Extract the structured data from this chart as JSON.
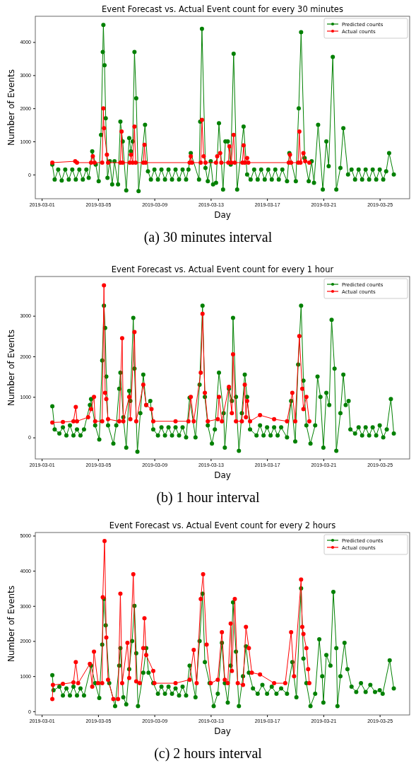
{
  "chart_data": [
    {
      "type": "line",
      "title": "Event Forecast vs. Actual Event count for every 30 minutes",
      "xlabel": "Day",
      "ylabel": "Number of Events",
      "annotations": [
        "(a) 30 minutes interval"
      ],
      "xlim": [
        "2019-02-28T13:00",
        "2019-03-27T03:00"
      ],
      "xticks": [
        "2019-03-01",
        "2019-03-05",
        "2019-03-09",
        "2019-03-13",
        "2019-03-17",
        "2019-03-21",
        "2019-03-25"
      ],
      "ylim": [
        -730,
        4780
      ],
      "yticks": [
        0,
        1000,
        2000,
        3000,
        4000
      ],
      "legend": "top right",
      "marker": "circle",
      "line_style": "solid",
      "series": [
        {
          "name": "Predicted counts",
          "color": "#008000",
          "x": [
            "2019-03-01T18:00",
            "2019-03-01T22:00",
            "2019-03-02T04:00",
            "2019-03-02T10:00",
            "2019-03-02T16:00",
            "2019-03-02T22:00",
            "2019-03-03T04:00",
            "2019-03-03T10:00",
            "2019-03-03T16:00",
            "2019-03-03T22:00",
            "2019-03-04T04:00",
            "2019-03-04T08:00",
            "2019-03-04T14:00",
            "2019-03-04T20:00",
            "2019-03-05T01:00",
            "2019-03-05T05:00",
            "2019-03-05T08:00",
            "2019-03-05T09:00",
            "2019-03-05T11:00",
            "2019-03-05T13:00",
            "2019-03-05T16:00",
            "2019-03-05T20:00",
            "2019-03-06T00:00",
            "2019-03-06T04:00",
            "2019-03-06T10:00",
            "2019-03-06T14:00",
            "2019-03-06T18:00",
            "2019-03-07T00:00",
            "2019-03-07T05:00",
            "2019-03-07T08:00",
            "2019-03-07T11:00",
            "2019-03-07T14:00",
            "2019-03-07T17:00",
            "2019-03-07T21:00",
            "2019-03-08T08:00",
            "2019-03-08T13:00",
            "2019-03-08T18:00",
            "2019-03-09T00:00",
            "2019-03-09T06:00",
            "2019-03-09T12:00",
            "2019-03-09T18:00",
            "2019-03-10T00:00",
            "2019-03-10T06:00",
            "2019-03-10T12:00",
            "2019-03-10T18:00",
            "2019-03-11T00:00",
            "2019-03-11T06:00",
            "2019-03-11T10:00",
            "2019-03-11T14:00",
            "2019-03-12T04:00",
            "2019-03-12T06:00",
            "2019-03-12T09:00",
            "2019-03-12T15:00",
            "2019-03-12T19:00",
            "2019-03-13T00:00",
            "2019-03-13T04:00",
            "2019-03-13T09:00",
            "2019-03-13T14:00",
            "2019-03-13T21:00",
            "2019-03-14T01:00",
            "2019-03-14T05:00",
            "2019-03-14T10:00",
            "2019-03-14T15:00",
            "2019-03-14T21:00",
            "2019-03-15T08:00",
            "2019-03-15T14:00",
            "2019-03-15T20:00",
            "2019-03-16T02:00",
            "2019-03-16T08:00",
            "2019-03-16T14:00",
            "2019-03-16T20:00",
            "2019-03-17T02:00",
            "2019-03-17T08:00",
            "2019-03-17T14:00",
            "2019-03-17T20:00",
            "2019-03-18T02:00",
            "2019-03-18T10:00",
            "2019-03-18T14:00",
            "2019-03-19T01:00",
            "2019-03-19T06:00",
            "2019-03-19T10:00",
            "2019-03-19T16:00",
            "2019-03-19T23:00",
            "2019-03-20T04:00",
            "2019-03-20T08:00",
            "2019-03-20T15:00",
            "2019-03-20T23:00",
            "2019-03-21T05:00",
            "2019-03-21T09:00",
            "2019-03-21T16:00",
            "2019-03-21T22:00",
            "2019-03-22T05:00",
            "2019-03-22T10:00",
            "2019-03-22T18:00",
            "2019-03-23T00:00",
            "2019-03-23T06:00",
            "2019-03-23T12:00",
            "2019-03-23T18:00",
            "2019-03-24T00:00",
            "2019-03-24T06:00",
            "2019-03-24T12:00",
            "2019-03-24T18:00",
            "2019-03-25T00:00",
            "2019-03-25T06:00",
            "2019-03-25T11:00",
            "2019-03-25T16:00",
            "2019-03-26T00:00"
          ],
          "values": [
            300,
            -150,
            150,
            -180,
            150,
            -150,
            150,
            -150,
            150,
            -150,
            150,
            -100,
            700,
            300,
            -200,
            1200,
            3700,
            4520,
            3300,
            1700,
            -100,
            400,
            -300,
            400,
            -300,
            1600,
            1000,
            -480,
            1100,
            700,
            1000,
            3700,
            2300,
            -500,
            1500,
            100,
            -150,
            150,
            -150,
            150,
            -150,
            150,
            -150,
            150,
            -150,
            150,
            -150,
            150,
            650,
            -150,
            1600,
            4400,
            200,
            -200,
            400,
            -300,
            -250,
            1550,
            -450,
            1000,
            1000,
            300,
            3650,
            -450,
            1450,
            0,
            -150,
            150,
            -150,
            150,
            -150,
            150,
            -150,
            150,
            -150,
            150,
            -200,
            650,
            -200,
            2000,
            4300,
            500,
            -200,
            400,
            -250,
            1500,
            -450,
            1000,
            250,
            3550,
            -450,
            200,
            1400,
            0,
            150,
            -150,
            150,
            -150,
            150,
            -150,
            150,
            -150,
            150,
            -150,
            100,
            650,
            0
          ]
        },
        {
          "name": "Actual counts",
          "color": "#ff0000",
          "x": [
            "2019-03-01T18:00",
            "2019-03-03T09:00",
            "2019-03-03T12:00",
            "2019-03-04T12:00",
            "2019-03-04T15:00",
            "2019-03-04T18:00",
            "2019-03-05T07:00",
            "2019-03-05T09:00",
            "2019-03-05T10:00",
            "2019-03-05T15:00",
            "2019-03-05T17:00",
            "2019-03-06T14:00",
            "2019-03-06T16:00",
            "2019-03-06T18:00",
            "2019-03-07T06:00",
            "2019-03-07T08:00",
            "2019-03-07T11:00",
            "2019-03-07T14:00",
            "2019-03-07T16:00",
            "2019-03-08T05:00",
            "2019-03-08T07:00",
            "2019-03-08T09:00",
            "2019-03-11T12:00",
            "2019-03-11T14:00",
            "2019-03-11T16:00",
            "2019-03-12T07:00",
            "2019-03-12T09:00",
            "2019-03-12T12:00",
            "2019-03-12T15:00",
            "2019-03-13T09:00",
            "2019-03-13T11:00",
            "2019-03-13T16:00",
            "2019-03-13T18:00",
            "2019-03-14T06:00",
            "2019-03-14T08:00",
            "2019-03-14T11:00",
            "2019-03-14T15:00",
            "2019-03-14T17:00",
            "2019-03-15T06:00",
            "2019-03-15T08:00",
            "2019-03-15T10:00",
            "2019-03-15T14:00",
            "2019-03-15T16:00",
            "2019-03-18T13:00",
            "2019-03-18T15:00",
            "2019-03-18T17:00",
            "2019-03-19T05:00",
            "2019-03-19T07:00",
            "2019-03-19T09:00",
            "2019-03-19T14:00",
            "2019-03-19T17:00",
            "2019-03-20T00:00"
          ],
          "values": [
            360,
            400,
            360,
            360,
            550,
            360,
            360,
            2000,
            1400,
            600,
            360,
            360,
            1300,
            360,
            360,
            600,
            360,
            1450,
            360,
            360,
            900,
            360,
            360,
            550,
            360,
            360,
            1650,
            550,
            360,
            360,
            550,
            650,
            360,
            360,
            850,
            360,
            1200,
            360,
            360,
            880,
            360,
            500,
            360,
            360,
            600,
            360,
            360,
            1300,
            360,
            650,
            400,
            360
          ]
        }
      ]
    },
    {
      "type": "line",
      "title": "Event Forecast vs. Actual Event count for every 1 hour",
      "xlabel": "Day",
      "ylabel": "Number of Events",
      "annotations": [
        "(b) 1 hour interval"
      ],
      "xlim": [
        "2019-02-28T13:00",
        "2019-03-27T03:00"
      ],
      "xticks": [
        "2019-03-01",
        "2019-03-05",
        "2019-03-09",
        "2019-03-13",
        "2019-03-17",
        "2019-03-21",
        "2019-03-25"
      ],
      "ylim": [
        -530,
        3970
      ],
      "yticks": [
        0,
        1000,
        2000,
        3000
      ],
      "legend": "top right",
      "marker": "circle",
      "line_style": "solid",
      "series": [
        {
          "name": "Predicted counts",
          "color": "#008000",
          "x": [
            "2019-03-01T18:00",
            "2019-03-01T22:00",
            "2019-03-02T06:00",
            "2019-03-02T12:00",
            "2019-03-02T18:00",
            "2019-03-03T00:00",
            "2019-03-03T06:00",
            "2019-03-03T12:00",
            "2019-03-03T18:00",
            "2019-03-04T00:00",
            "2019-03-04T10:00",
            "2019-03-04T12:00",
            "2019-03-04T19:00",
            "2019-03-05T02:00",
            "2019-03-05T07:00",
            "2019-03-05T10:00",
            "2019-03-05T12:00",
            "2019-03-05T14:00",
            "2019-03-05T17:00",
            "2019-03-06T02:00",
            "2019-03-06T07:00",
            "2019-03-06T12:00",
            "2019-03-06T14:00",
            "2019-03-06T19:00",
            "2019-03-07T00:00",
            "2019-03-07T05:00",
            "2019-03-07T07:00",
            "2019-03-07T12:00",
            "2019-03-07T14:00",
            "2019-03-07T19:00",
            "2019-03-08T00:00",
            "2019-03-08T05:00",
            "2019-03-08T10:00",
            "2019-03-08T17:00",
            "2019-03-08T22:00",
            "2019-03-09T06:00",
            "2019-03-09T12:00",
            "2019-03-09T18:00",
            "2019-03-10T00:00",
            "2019-03-10T06:00",
            "2019-03-10T12:00",
            "2019-03-10T18:00",
            "2019-03-11T00:00",
            "2019-03-11T06:00",
            "2019-03-11T12:00",
            "2019-03-11T22:00",
            "2019-03-12T05:00",
            "2019-03-12T10:00",
            "2019-03-12T14:00",
            "2019-03-12T19:00",
            "2019-03-13T02:00",
            "2019-03-13T07:00",
            "2019-03-13T14:00",
            "2019-03-13T22:00",
            "2019-03-14T00:00",
            "2019-03-14T07:00",
            "2019-03-14T12:00",
            "2019-03-14T14:00",
            "2019-03-14T19:00",
            "2019-03-15T00:00",
            "2019-03-15T05:00",
            "2019-03-15T10:00",
            "2019-03-15T14:00",
            "2019-03-15T19:00",
            "2019-03-16T06:00",
            "2019-03-16T12:00",
            "2019-03-16T18:00",
            "2019-03-17T00:00",
            "2019-03-17T06:00",
            "2019-03-17T12:00",
            "2019-03-17T18:00",
            "2019-03-18T00:00",
            "2019-03-18T10:00",
            "2019-03-18T17:00",
            "2019-03-19T00:00",
            "2019-03-19T05:00",
            "2019-03-19T10:00",
            "2019-03-19T14:00",
            "2019-03-19T19:00",
            "2019-03-20T02:00",
            "2019-03-20T10:00",
            "2019-03-20T14:00",
            "2019-03-20T19:00",
            "2019-03-21T00:00",
            "2019-03-21T05:00",
            "2019-03-21T10:00",
            "2019-03-21T14:00",
            "2019-03-21T19:00",
            "2019-03-21T22:00",
            "2019-03-22T05:00",
            "2019-03-22T10:00",
            "2019-03-22T14:00",
            "2019-03-22T19:00",
            "2019-03-22T22:00",
            "2019-03-23T06:00",
            "2019-03-23T12:00",
            "2019-03-23T18:00",
            "2019-03-24T00:00",
            "2019-03-24T06:00",
            "2019-03-24T12:00",
            "2019-03-24T18:00",
            "2019-03-25T00:00",
            "2019-03-25T06:00",
            "2019-03-25T12:00",
            "2019-03-25T19:00",
            "2019-03-26T00:00"
          ],
          "values": [
            770,
            200,
            100,
            250,
            50,
            300,
            50,
            200,
            50,
            200,
            800,
            950,
            300,
            -50,
            1900,
            3250,
            2700,
            1500,
            300,
            -150,
            300,
            1200,
            1600,
            500,
            -250,
            1150,
            900,
            2950,
            1700,
            -350,
            600,
            1550,
            800,
            900,
            200,
            50,
            250,
            50,
            250,
            50,
            250,
            50,
            250,
            0,
            980,
            0,
            1300,
            3250,
            1000,
            300,
            -150,
            200,
            1600,
            600,
            -250,
            1200,
            900,
            2950,
            1000,
            -330,
            600,
            1550,
            1000,
            200,
            50,
            300,
            50,
            250,
            50,
            250,
            50,
            250,
            0,
            900,
            -100,
            1800,
            3250,
            1400,
            300,
            -150,
            300,
            1500,
            1000,
            -250,
            1100,
            800,
            2900,
            1700,
            -330,
            600,
            1550,
            800,
            900,
            200,
            100,
            250,
            50,
            250,
            50,
            250,
            50,
            300,
            0,
            200,
            950,
            100
          ]
        },
        {
          "name": "Actual counts",
          "color": "#ff0000",
          "x": [
            "2019-03-01T18:00",
            "2019-03-02T12:00",
            "2019-03-03T06:00",
            "2019-03-03T10:00",
            "2019-03-03T12:00",
            "2019-03-04T07:00",
            "2019-03-04T12:00",
            "2019-03-04T17:00",
            "2019-03-04T19:00",
            "2019-03-05T07:00",
            "2019-03-05T10:00",
            "2019-03-05T12:00",
            "2019-03-05T14:00",
            "2019-03-05T17:00",
            "2019-03-06T12:00",
            "2019-03-06T17:00",
            "2019-03-06T19:00",
            "2019-03-07T05:00",
            "2019-03-07T07:00",
            "2019-03-07T14:00",
            "2019-03-07T17:00",
            "2019-03-08T05:00",
            "2019-03-08T10:00",
            "2019-03-08T19:00",
            "2019-03-08T22:00",
            "2019-03-10T12:00",
            "2019-03-11T10:00",
            "2019-03-11T14:00",
            "2019-03-11T19:00",
            "2019-03-12T07:00",
            "2019-03-12T10:00",
            "2019-03-12T14:00",
            "2019-03-12T19:00",
            "2019-03-13T12:00",
            "2019-03-13T14:00",
            "2019-03-13T19:00",
            "2019-03-14T07:00",
            "2019-03-14T12:00",
            "2019-03-14T14:00",
            "2019-03-14T19:00",
            "2019-03-15T05:00",
            "2019-03-15T10:00",
            "2019-03-15T12:00",
            "2019-03-15T14:00",
            "2019-03-15T19:00",
            "2019-03-16T12:00",
            "2019-03-17T12:00",
            "2019-03-18T10:00",
            "2019-03-18T19:00",
            "2019-03-19T00:00",
            "2019-03-19T07:00",
            "2019-03-19T12:00",
            "2019-03-19T14:00",
            "2019-03-19T19:00",
            "2019-03-20T00:00"
          ],
          "values": [
            370,
            380,
            400,
            750,
            400,
            500,
            700,
            1000,
            400,
            400,
            3750,
            1100,
            950,
            450,
            400,
            2450,
            400,
            1000,
            450,
            2600,
            400,
            1300,
            800,
            700,
            400,
            400,
            400,
            1000,
            400,
            1600,
            3050,
            1100,
            400,
            450,
            1000,
            400,
            1250,
            600,
            2050,
            400,
            400,
            1300,
            500,
            900,
            400,
            550,
            450,
            400,
            1100,
            400,
            2500,
            1200,
            700,
            1000,
            400
          ]
        }
      ]
    },
    {
      "type": "line",
      "title": "Event Forecast vs. Actual Event count for every 2 hours",
      "xlabel": "Day",
      "ylabel": "Number of Events",
      "annotations": [
        "(c) 2 hours interval"
      ],
      "xlim": [
        "2019-02-28T13:00",
        "2019-03-27T03:00"
      ],
      "xticks": [
        "2019-03-01",
        "2019-03-05",
        "2019-03-09",
        "2019-03-13",
        "2019-03-17",
        "2019-03-21",
        "2019-03-25"
      ],
      "ylim": [
        -104,
        5090
      ],
      "yticks": [
        0,
        1000,
        2000,
        3000,
        4000,
        5000
      ],
      "legend": "top right",
      "marker": "circle",
      "line_style": "solid",
      "series": [
        {
          "name": "Predicted counts",
          "color": "#008000",
          "x": [
            "2019-03-01T18:00",
            "2019-03-01T20:00",
            "2019-03-02T06:00",
            "2019-03-02T12:00",
            "2019-03-02T18:00",
            "2019-03-03T00:00",
            "2019-03-03T06:00",
            "2019-03-03T12:00",
            "2019-03-03T18:00",
            "2019-03-04T00:00",
            "2019-03-04T12:00",
            "2019-03-04T19:00",
            "2019-03-05T02:00",
            "2019-03-05T07:00",
            "2019-03-05T10:00",
            "2019-03-05T13:00",
            "2019-03-05T19:00",
            "2019-03-06T05:00",
            "2019-03-06T12:00",
            "2019-03-06T14:00",
            "2019-03-06T19:00",
            "2019-03-07T00:00",
            "2019-03-07T05:00",
            "2019-03-07T10:00",
            "2019-03-07T14:00",
            "2019-03-07T17:00",
            "2019-03-07T20:00",
            "2019-03-08T05:00",
            "2019-03-08T10:00",
            "2019-03-08T14:00",
            "2019-03-08T22:00",
            "2019-03-09T06:00",
            "2019-03-09T12:00",
            "2019-03-09T18:00",
            "2019-03-10T00:00",
            "2019-03-10T06:00",
            "2019-03-10T12:00",
            "2019-03-10T18:00",
            "2019-03-11T00:00",
            "2019-03-11T06:00",
            "2019-03-11T12:00",
            "2019-03-11T22:00",
            "2019-03-12T05:00",
            "2019-03-12T10:00",
            "2019-03-12T14:00",
            "2019-03-12T22:00",
            "2019-03-13T05:00",
            "2019-03-13T12:00",
            "2019-03-13T19:00",
            "2019-03-14T00:00",
            "2019-03-14T05:00",
            "2019-03-14T10:00",
            "2019-03-14T14:00",
            "2019-03-14T19:00",
            "2019-03-15T00:00",
            "2019-03-15T07:00",
            "2019-03-15T12:00",
            "2019-03-15T17:00",
            "2019-03-16T00:00",
            "2019-03-16T08:00",
            "2019-03-16T16:00",
            "2019-03-17T00:00",
            "2019-03-17T08:00",
            "2019-03-17T16:00",
            "2019-03-18T00:00",
            "2019-03-18T10:00",
            "2019-03-18T19:00",
            "2019-03-19T02:00",
            "2019-03-19T10:00",
            "2019-03-19T14:00",
            "2019-03-19T19:00",
            "2019-03-20T02:00",
            "2019-03-20T10:00",
            "2019-03-20T17:00",
            "2019-03-20T22:00",
            "2019-03-21T00:00",
            "2019-03-21T05:00",
            "2019-03-21T12:00",
            "2019-03-21T17:00",
            "2019-03-21T22:00",
            "2019-03-22T00:00",
            "2019-03-22T05:00",
            "2019-03-22T12:00",
            "2019-03-22T17:00",
            "2019-03-23T00:00",
            "2019-03-23T08:00",
            "2019-03-23T16:00",
            "2019-03-24T00:00",
            "2019-03-24T08:00",
            "2019-03-24T16:00",
            "2019-03-25T00:00",
            "2019-03-25T05:00",
            "2019-03-25T17:00",
            "2019-03-26T00:00"
          ],
          "values": [
            1030,
            600,
            700,
            450,
            650,
            450,
            700,
            450,
            650,
            450,
            1300,
            800,
            380,
            1900,
            3200,
            2450,
            800,
            150,
            1300,
            1800,
            400,
            200,
            1200,
            2000,
            3000,
            1650,
            150,
            1100,
            1800,
            1100,
            800,
            500,
            700,
            500,
            700,
            500,
            650,
            450,
            700,
            450,
            1300,
            400,
            2000,
            3350,
            1400,
            800,
            150,
            500,
            1950,
            800,
            250,
            1300,
            3100,
            1700,
            150,
            1000,
            1850,
            1100,
            650,
            500,
            750,
            500,
            700,
            500,
            650,
            500,
            1400,
            400,
            3500,
            1500,
            800,
            150,
            500,
            2050,
            1000,
            250,
            1600,
            1300,
            3400,
            1800,
            150,
            1000,
            1950,
            1200,
            700,
            550,
            800,
            550,
            750,
            550,
            600,
            500,
            1450,
            650
          ]
        },
        {
          "name": "Actual counts",
          "color": "#ff0000",
          "x": [
            "2019-03-01T18:00",
            "2019-03-01T19:00",
            "2019-03-02T12:00",
            "2019-03-03T06:00",
            "2019-03-03T10:00",
            "2019-03-03T14:00",
            "2019-03-04T10:00",
            "2019-03-04T14:00",
            "2019-03-04T17:00",
            "2019-03-05T00:00",
            "2019-03-05T07:00",
            "2019-03-05T08:00",
            "2019-03-05T11:00",
            "2019-03-05T14:00",
            "2019-03-05T17:00",
            "2019-03-06T02:00",
            "2019-03-06T10:00",
            "2019-03-06T14:00",
            "2019-03-06T17:00",
            "2019-03-07T02:00",
            "2019-03-07T05:00",
            "2019-03-07T12:00",
            "2019-03-07T17:00",
            "2019-03-07T23:00",
            "2019-03-08T05:00",
            "2019-03-08T07:00",
            "2019-03-08T10:00",
            "2019-03-08T22:00",
            "2019-03-09T00:00",
            "2019-03-10T12:00",
            "2019-03-11T12:00",
            "2019-03-11T19:00",
            "2019-03-12T00:00",
            "2019-03-12T07:00",
            "2019-03-12T11:00",
            "2019-03-12T17:00",
            "2019-03-13T00:00",
            "2019-03-13T12:00",
            "2019-03-13T19:00",
            "2019-03-14T00:00",
            "2019-03-14T05:00",
            "2019-03-14T10:00",
            "2019-03-14T12:00",
            "2019-03-14T17:00",
            "2019-03-14T22:00",
            "2019-03-15T07:00",
            "2019-03-15T12:00",
            "2019-03-15T17:00",
            "2019-03-15T22:00",
            "2019-03-16T12:00",
            "2019-03-17T12:00",
            "2019-03-18T07:00",
            "2019-03-18T17:00",
            "2019-03-18T22:00",
            "2019-03-19T10:00",
            "2019-03-19T12:00",
            "2019-03-19T14:00",
            "2019-03-19T19:00",
            "2019-03-19T22:00",
            "2019-03-20T00:00"
          ],
          "values": [
            350,
            750,
            780,
            820,
            1400,
            800,
            1350,
            700,
            1700,
            800,
            800,
            3250,
            4850,
            2100,
            900,
            350,
            350,
            3350,
            800,
            1950,
            950,
            3900,
            850,
            800,
            1800,
            2650,
            1600,
            1150,
            800,
            800,
            900,
            1750,
            800,
            3200,
            3900,
            1900,
            800,
            900,
            2250,
            900,
            800,
            2500,
            1150,
            3200,
            800,
            750,
            2400,
            1800,
            1100,
            1050,
            800,
            800,
            2250,
            1000,
            3750,
            2400,
            2200,
            1800,
            1200,
            800
          ]
        }
      ]
    }
  ]
}
